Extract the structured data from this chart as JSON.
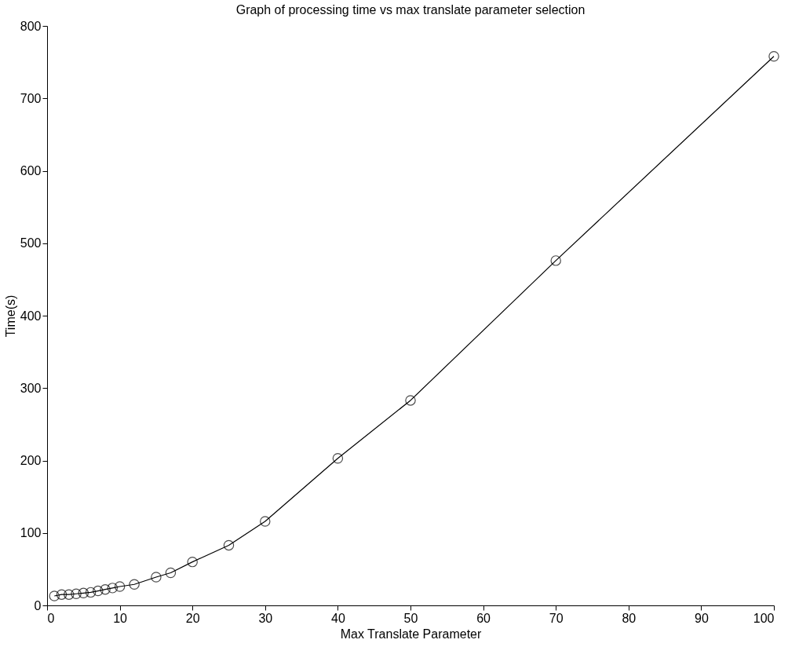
{
  "chart_data": {
    "type": "line",
    "title": "Graph of processing time vs max translate parameter selection",
    "xlabel": "Max Translate Parameter",
    "ylabel": "Time(s)",
    "x": [
      1,
      2,
      3,
      4,
      5,
      6,
      7,
      8,
      9,
      10,
      12,
      15,
      17,
      20,
      25,
      30,
      40,
      50,
      70,
      100
    ],
    "series": [
      {
        "color": "#000000",
        "values": [
          13,
          15,
          15,
          16,
          17,
          18,
          20,
          22,
          24,
          26,
          29,
          39,
          45,
          60,
          83,
          116,
          203,
          283,
          476,
          758
        ]
      }
    ],
    "xlim": [
      0,
      100
    ],
    "xticks": [
      0,
      10,
      20,
      30,
      40,
      50,
      60,
      70,
      80,
      90,
      100
    ],
    "ylim": [
      0,
      800
    ],
    "yticks": [
      0,
      100,
      200,
      300,
      400,
      500,
      600,
      700,
      800
    ],
    "grid": false,
    "marker": "circle",
    "line_style": "solid"
  }
}
